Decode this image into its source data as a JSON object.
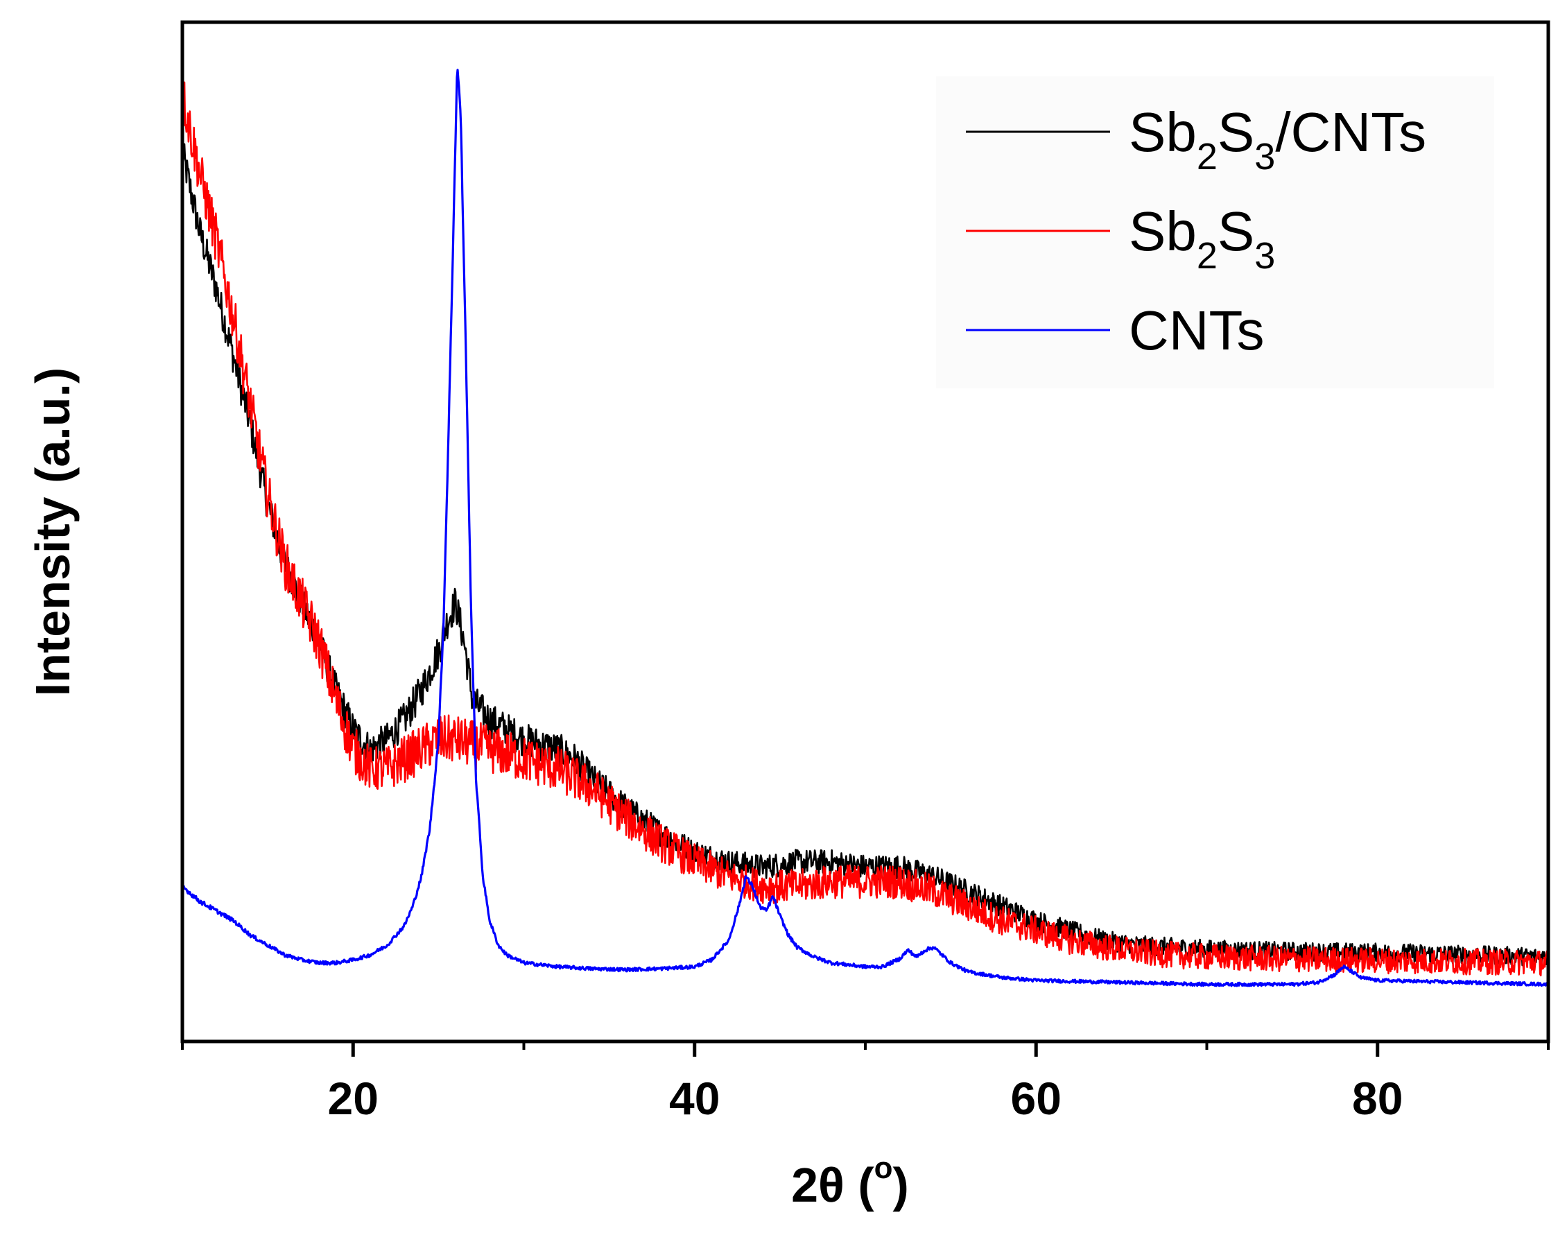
{
  "chart_data": {
    "type": "line",
    "title": "",
    "xlabel": "2θ (°)",
    "xlabel_main": "2θ (",
    "xlabel_unit": "o",
    "xlabel_close": ")",
    "ylabel": "Intensity (a.u.)",
    "xlim": [
      10,
      90
    ],
    "ylim": [
      0,
      100
    ],
    "x_ticks": [
      20,
      40,
      60,
      80
    ],
    "x_minor_ticks": [
      10,
      30,
      50,
      70,
      90
    ],
    "grid": false,
    "legend_position": "top-right",
    "series": [
      {
        "name": "Sb2S3/CNTs",
        "label_parts": [
          [
            "Sb",
            ""
          ],
          [
            "2",
            "sub"
          ],
          [
            "S",
            ""
          ],
          [
            "3",
            "sub"
          ],
          [
            "/CNTs",
            ""
          ]
        ],
        "color": "#000000",
        "noise": 1.8,
        "x": [
          10,
          11,
          12,
          13,
          14,
          15,
          16,
          17,
          18,
          19,
          20,
          21,
          22,
          23,
          24,
          25,
          25.5,
          26,
          26.5,
          27,
          28,
          29,
          30,
          31,
          32,
          33,
          34,
          35,
          36,
          38,
          40,
          42,
          44,
          46,
          48,
          50,
          52,
          54,
          56,
          58,
          60,
          62,
          64,
          66,
          68,
          70,
          74,
          78,
          82,
          86,
          90
        ],
        "values": [
          88,
          80,
          74,
          67,
          60,
          52,
          46,
          42,
          38,
          33,
          29,
          27,
          28,
          30,
          33,
          37,
          40,
          42,
          38,
          32,
          30,
          29,
          28,
          27.5,
          27,
          26,
          24,
          22.5,
          21,
          18.5,
          16.5,
          15.5,
          15,
          15.5,
          15.5,
          15,
          15,
          14,
          12.5,
          11,
          9.5,
          8.5,
          7.5,
          7,
          6.8,
          6.6,
          6.4,
          6.3,
          6.2,
          6.0,
          5.8
        ]
      },
      {
        "name": "Sb2S3",
        "label_parts": [
          [
            "Sb",
            ""
          ],
          [
            "2",
            "sub"
          ],
          [
            "S",
            ""
          ],
          [
            "3",
            "sub"
          ]
        ],
        "color": "#ff0000",
        "noise": 2.6,
        "x": [
          10,
          11,
          12,
          13,
          14,
          15,
          16,
          17,
          18,
          19,
          20,
          21,
          22,
          23,
          24,
          25,
          26,
          27,
          28,
          29,
          30,
          31,
          32,
          33,
          34,
          35,
          36,
          38,
          40,
          42,
          44,
          46,
          48,
          50,
          52,
          54,
          56,
          58,
          60,
          62,
          64,
          66,
          68,
          70,
          74,
          78,
          82,
          86,
          90
        ],
        "values": [
          94,
          86,
          79,
          71,
          62,
          53,
          46,
          42,
          38,
          32,
          27,
          25,
          25,
          26,
          27,
          28,
          28,
          27.5,
          27,
          26.5,
          26,
          25.5,
          25,
          24,
          23,
          21.5,
          20,
          17.5,
          15.5,
          14,
          13,
          13,
          13.5,
          13.5,
          13.5,
          12.5,
          11,
          9.5,
          8.5,
          7.5,
          6.8,
          6.3,
          6,
          5.8,
          5.6,
          5.5,
          5.4,
          5.3,
          5.2
        ]
      },
      {
        "name": "CNTs",
        "label_parts": [
          [
            "CNTs",
            ""
          ]
        ],
        "color": "#0000ff",
        "noise": 0.35,
        "x": [
          10,
          11,
          12,
          13,
          14,
          15,
          16,
          17,
          18,
          19,
          20,
          21,
          22,
          23,
          23.5,
          24,
          24.5,
          25,
          25.3,
          25.6,
          25.9,
          26.1,
          26.3,
          26.6,
          26.9,
          27.2,
          27.6,
          28,
          28.5,
          29,
          30,
          32,
          34,
          36,
          38,
          40,
          41,
          42,
          42.6,
          43,
          43.4,
          43.8,
          44.2,
          44.6,
          45,
          45.5,
          46,
          47,
          48,
          50,
          51,
          52,
          52.5,
          53,
          53.5,
          54,
          55,
          56,
          58,
          60,
          65,
          70,
          75,
          76.5,
          77.5,
          78,
          78.5,
          79,
          80,
          85,
          90
        ],
        "values": [
          13,
          11.5,
          10.5,
          9.5,
          8,
          7,
          6,
          5.5,
          5.2,
          5.2,
          5.5,
          6,
          7,
          9,
          11,
          14,
          19,
          28,
          40,
          60,
          82,
          97,
          92,
          68,
          42,
          24,
          14,
          9.5,
          7,
          6,
          5.2,
          4.8,
          4.6,
          4.5,
          4.6,
          4.8,
          5.5,
          7.5,
          11,
          14,
          13,
          11,
          10.5,
          12,
          10,
          8,
          6.8,
          5.8,
          5.2,
          4.8,
          4.8,
          5.6,
          6.5,
          5.8,
          6.5,
          6.8,
          5.2,
          4.3,
          3.7,
          3.4,
          3.2,
          3.0,
          3.0,
          3.2,
          4.0,
          4.8,
          4.3,
          3.7,
          3.4,
          3.2,
          3.0
        ]
      }
    ]
  }
}
